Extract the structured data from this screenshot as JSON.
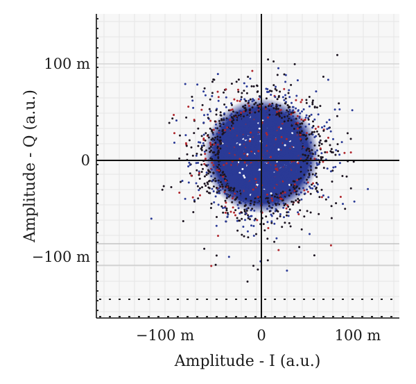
{
  "chart_data": {
    "type": "scatter",
    "title": "",
    "xlabel": "Amplitude - I (a.u.)",
    "ylabel": "Amplitude - Q (a.u.)",
    "xlim": [
      -0.16,
      0.14
    ],
    "ylim": [
      -0.135,
      0.135
    ],
    "grid": true,
    "x_ticks": [
      {
        "value": -0.1,
        "label": "−100 m"
      },
      {
        "value": 0,
        "label": "0"
      },
      {
        "value": 0.1,
        "label": "100 m"
      }
    ],
    "y_ticks": [
      {
        "value": 0.1,
        "label": "100 m"
      },
      {
        "value": 0,
        "label": "0"
      },
      {
        "value": -0.1,
        "label": "−100 m"
      }
    ],
    "distribution": {
      "shape": "circular gaussian cloud",
      "center": [
        0,
        0.005
      ],
      "approx_sigma": 0.028,
      "dense_core_radius": 0.05,
      "outer_extent": 0.12
    },
    "series": [
      {
        "color": "#2a3a96"
      },
      {
        "color": "#1c1420"
      },
      {
        "color": "#b0262c"
      }
    ]
  }
}
